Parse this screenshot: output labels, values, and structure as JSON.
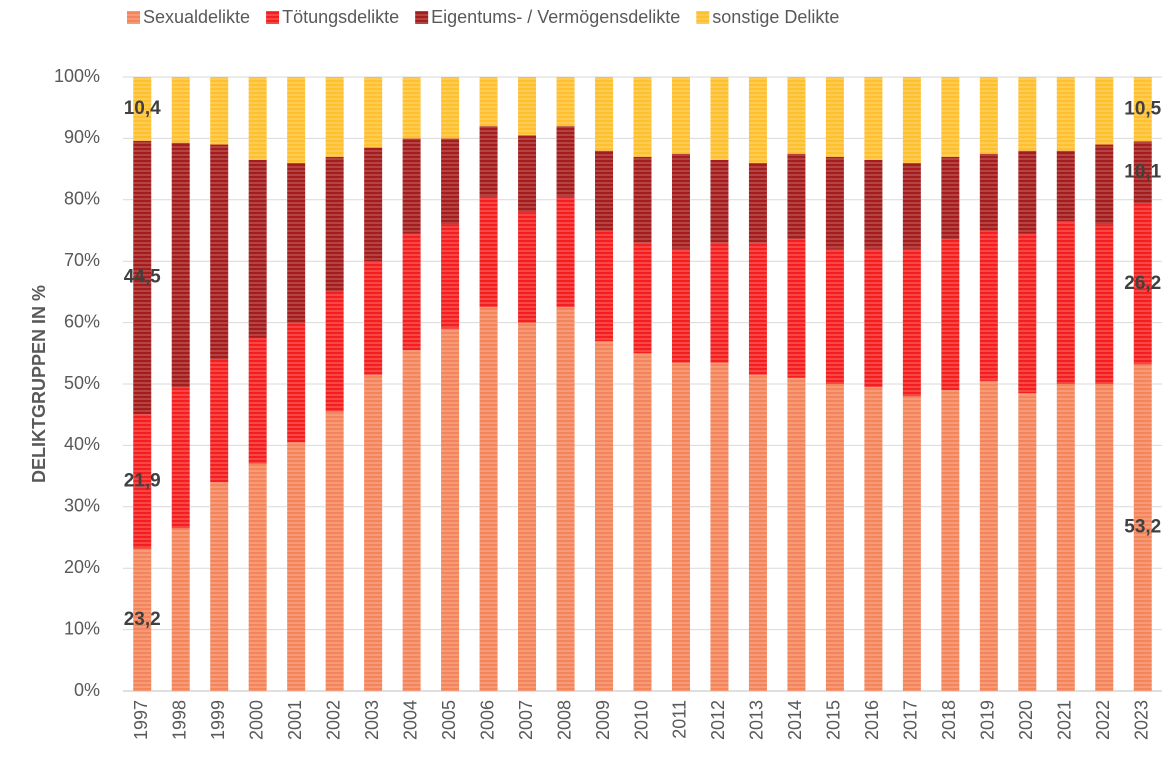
{
  "chart_data": {
    "type": "stacked_bar",
    "y_label": "DELIKTGRUPPEN IN %",
    "categories": [
      "1997",
      "1998",
      "1999",
      "2000",
      "2001",
      "2002",
      "2003",
      "2004",
      "2005",
      "2006",
      "2007",
      "2008",
      "2009",
      "2010",
      "2011",
      "2012",
      "2013",
      "2014",
      "2015",
      "2016",
      "2017",
      "2018",
      "2019",
      "2020",
      "2021",
      "2022",
      "2023"
    ],
    "series": [
      {
        "name": "Sexualdelikte",
        "color": "#f4845a",
        "values": [
          23.2,
          26.5,
          34,
          37,
          40.5,
          45.5,
          51.5,
          55.5,
          59,
          62.5,
          60,
          62.5,
          57,
          55,
          53.5,
          53.5,
          51.5,
          51,
          50,
          49.5,
          48,
          49,
          50.5,
          48.5,
          50,
          50,
          53.2
        ],
        "value_labels": [
          "23,2",
          null,
          null,
          null,
          null,
          null,
          null,
          null,
          null,
          null,
          null,
          null,
          null,
          null,
          null,
          null,
          null,
          null,
          null,
          null,
          null,
          null,
          null,
          null,
          null,
          null,
          "53,2"
        ]
      },
      {
        "name": "Tötungsdelikte",
        "color": "#f51e1e",
        "values": [
          21.9,
          23,
          20,
          20.5,
          19.5,
          19.5,
          18.5,
          19,
          17,
          18,
          18,
          18,
          18,
          18,
          18.5,
          19.5,
          21.5,
          22.5,
          22,
          22.5,
          24,
          24.5,
          24.5,
          26,
          26.5,
          26,
          26.2
        ],
        "value_labels": [
          "21,9",
          null,
          null,
          null,
          null,
          null,
          null,
          null,
          null,
          null,
          null,
          null,
          null,
          null,
          null,
          null,
          null,
          null,
          null,
          null,
          null,
          null,
          null,
          null,
          null,
          null,
          "26,2"
        ]
      },
      {
        "name": "Eigentums- / Vermögensdelikte",
        "color": "#a51c1c",
        "values": [
          44.5,
          39.8,
          35,
          29,
          26,
          22,
          18.5,
          15.5,
          14,
          11.5,
          12.5,
          11.5,
          13,
          14,
          15.5,
          13.5,
          13,
          14,
          15,
          14.5,
          14,
          13.5,
          12.5,
          13.5,
          11.5,
          13,
          10.1
        ],
        "value_labels": [
          "44,5",
          null,
          null,
          null,
          null,
          null,
          null,
          null,
          null,
          null,
          null,
          null,
          null,
          null,
          null,
          null,
          null,
          null,
          null,
          null,
          null,
          null,
          null,
          null,
          null,
          null,
          "10,1"
        ]
      },
      {
        "name": "sonstige Delikte",
        "color": "#ffc02e",
        "values": [
          10.4,
          10.7,
          11,
          13.5,
          14,
          13,
          11.5,
          10,
          10,
          8,
          9.5,
          8,
          12,
          13,
          12.5,
          13.5,
          14,
          12.5,
          13,
          13.5,
          14,
          13,
          12.5,
          12,
          12,
          11,
          10.5
        ],
        "value_labels": [
          "10,4",
          null,
          null,
          null,
          null,
          null,
          null,
          null,
          null,
          null,
          null,
          null,
          null,
          null,
          null,
          null,
          null,
          null,
          null,
          null,
          null,
          null,
          null,
          null,
          null,
          null,
          "10,5"
        ]
      }
    ],
    "ylim": [
      0,
      100
    ],
    "yticks": [
      {
        "value": 0,
        "label": "0%"
      },
      {
        "value": 10,
        "label": "10%"
      },
      {
        "value": 20,
        "label": "20%"
      },
      {
        "value": 30,
        "label": "30%"
      },
      {
        "value": 40,
        "label": "40%"
      },
      {
        "value": 50,
        "label": "50%"
      },
      {
        "value": 60,
        "label": "60%"
      },
      {
        "value": 70,
        "label": "70%"
      },
      {
        "value": 80,
        "label": "80%"
      },
      {
        "value": 90,
        "label": "90%"
      },
      {
        "value": 100,
        "label": "100%"
      }
    ],
    "grid": true,
    "legend": "top"
  }
}
